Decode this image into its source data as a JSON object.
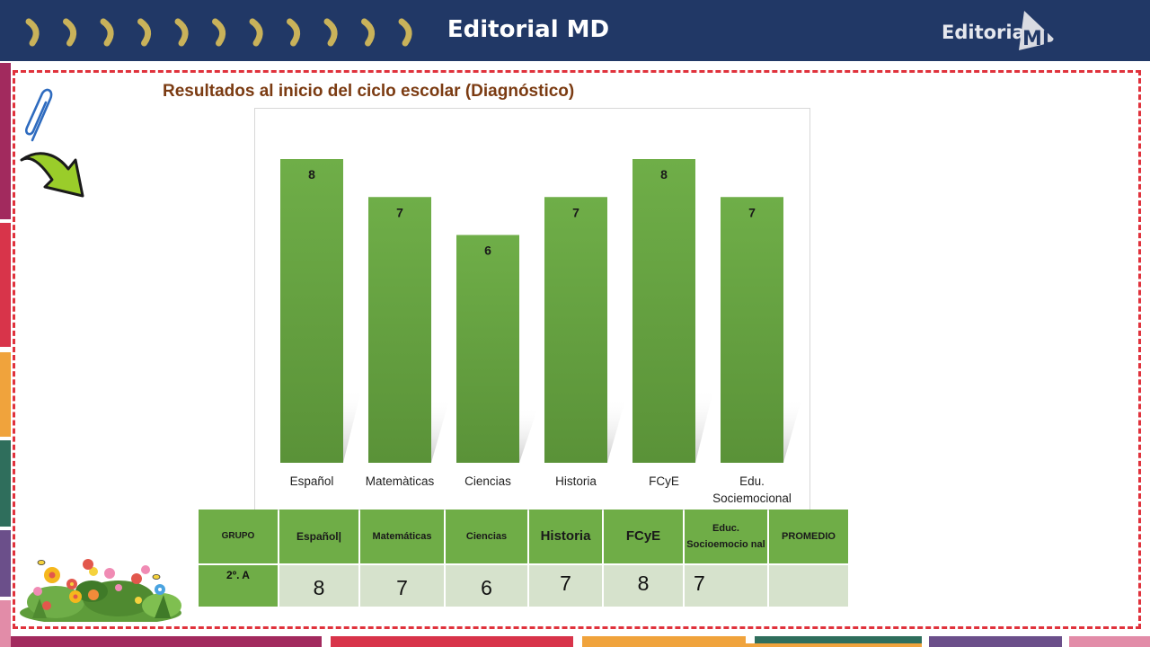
{
  "header": {
    "title": "Editorial MD",
    "logo_text": "Editorial",
    "colors": {
      "bar": "#213866",
      "chevron": "#c9b25a",
      "frame": "#e0323c"
    }
  },
  "chart_data": {
    "type": "bar",
    "title": "Resultados al inicio del ciclo escolar  (Diagnóstico)",
    "categories": [
      "Español",
      "Matemàticas",
      "Ciencias",
      "Historia",
      "FCyE",
      "Edu. Sociemocional"
    ],
    "values": [
      8,
      7,
      6,
      7,
      8,
      7
    ],
    "data_labels": [
      "8",
      "7",
      "6",
      "7",
      "8",
      "7"
    ],
    "xlabel": "",
    "ylabel": "",
    "ylim": [
      0,
      8
    ],
    "bar_color": "#6aab44",
    "grid": false,
    "legend": "none"
  },
  "table": {
    "headers": [
      "GRUPO",
      "Español|",
      "Matemáticas",
      "Ciencias",
      "Historia",
      "FCyE",
      "Educ. Socioemocio nal",
      "PROMEDIO"
    ],
    "row": [
      "2º. A",
      "8",
      "7",
      "6",
      "7",
      "8",
      "7",
      ""
    ]
  },
  "decorations": {
    "icons": [
      "paperclip-icon",
      "curved-arrow-icon",
      "flowers-illustration"
    ]
  }
}
